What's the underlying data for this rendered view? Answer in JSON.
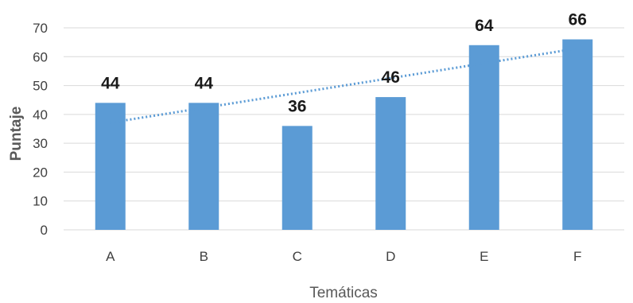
{
  "chart_data": {
    "type": "bar",
    "categories": [
      "A",
      "B",
      "C",
      "D",
      "E",
      "F"
    ],
    "values": [
      44,
      44,
      36,
      46,
      64,
      66
    ],
    "data_labels": [
      "44",
      "44",
      "36",
      "46",
      "64",
      "66"
    ],
    "y_ticks": [
      "0",
      "10",
      "20",
      "30",
      "40",
      "50",
      "60",
      "70"
    ],
    "ylim": [
      0,
      70
    ],
    "xlabel": "Temáticas",
    "ylabel": "Puntaje",
    "grid": true,
    "legend": "none",
    "trendline": {
      "type": "linear",
      "style": "dotted",
      "color": "#5b9bd5"
    },
    "colors": {
      "bar": "#5b9bd5",
      "grid": "#d9d9d9",
      "tick_text": "#404040",
      "axis_title": "#595959",
      "data_label": "#1a1a1a"
    }
  }
}
